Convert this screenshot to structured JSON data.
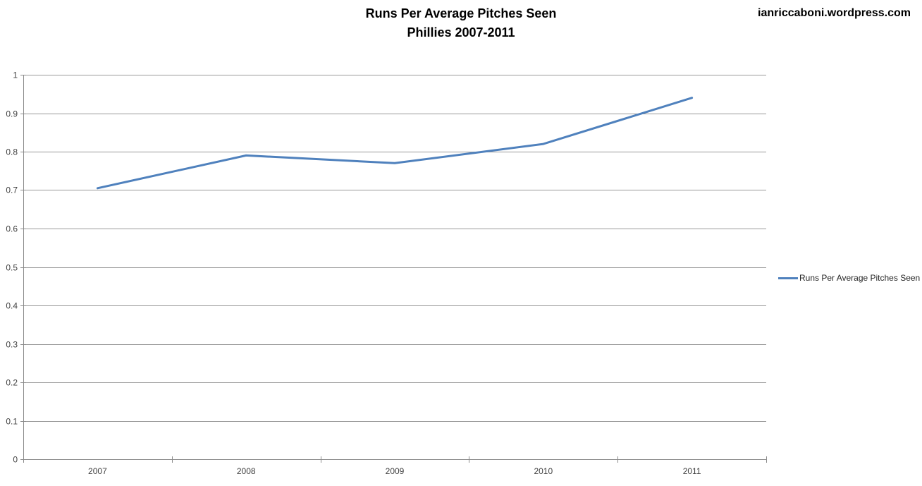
{
  "chart": {
    "title": "Runs Per Average Pitches Seen",
    "subtitle": "Phillies 2007-2011",
    "legend_label": "Runs Per Average Pitches Seen"
  },
  "watermark": "ianriccaboni.wordpress.com",
  "colors": {
    "series_line": "#4F81BD",
    "axis": "#8C8C8C",
    "gridline": "#999999",
    "tick_text": "#404040",
    "title_text": "#000000",
    "background": "#FFFFFF"
  },
  "chart_data": {
    "type": "line",
    "title": "Runs Per Average Pitches Seen",
    "subtitle": "Phillies 2007-2011",
    "categories": [
      "2007",
      "2008",
      "2009",
      "2010",
      "2011"
    ],
    "series": [
      {
        "name": "Runs Per Average Pitches Seen",
        "values": [
          0.705,
          0.79,
          0.77,
          0.82,
          0.94
        ]
      }
    ],
    "xlabel": "",
    "ylabel": "",
    "ylim": [
      0,
      1
    ],
    "ytick_step": 0.1,
    "ytick_labels": [
      "0",
      "0.1",
      "0.2",
      "0.3",
      "0.4",
      "0.5",
      "0.6",
      "0.7",
      "0.8",
      "0.9",
      "1"
    ],
    "grid": "horizontal",
    "legend": [
      "Runs Per Average Pitches Seen"
    ],
    "legend_position": "right"
  }
}
